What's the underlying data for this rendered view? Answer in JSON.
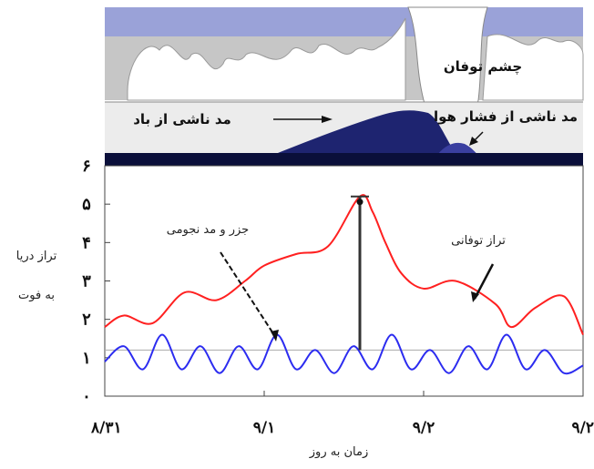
{
  "colors": {
    "storm_tide": "#ff2020",
    "astronomical_tide": "#2c2cf0",
    "sea_surge": "#1e2470",
    "sky_band": "#9aa2d8",
    "cloud_gray": "#bfbfbf",
    "ocean_floor": "#0a0f3a"
  },
  "schematic": {
    "eye_label": "چشم توفان",
    "wind_surge_label": "مد ناشی از باد",
    "pressure_surge_label": "مد ناشی از فشار هوا"
  },
  "chart_data": {
    "type": "line",
    "xlabel": "زمان به روز",
    "ylabel_line1": "تراز دریا",
    "ylabel_line2": "به فوت",
    "ylim": [
      0,
      6
    ],
    "yticks": [
      "۰",
      "۱",
      "۲",
      "۳",
      "۴",
      "۵",
      "۶"
    ],
    "xticks": [
      "۸/۳۱",
      "۹/۱",
      "۹/۲",
      "۹/۲"
    ],
    "xlim": [
      0,
      3
    ],
    "grid": false,
    "annotations": {
      "storm_tide_label": "تراز توفانی",
      "astronomical_label": "جزر و مد نجومی"
    },
    "series": [
      {
        "key": "storm_tide",
        "x": [
          0,
          0.12,
          0.3,
          0.5,
          0.7,
          0.88,
          1.0,
          1.2,
          1.4,
          1.6,
          1.68,
          1.76,
          1.86,
          2.0,
          2.2,
          2.45,
          2.55,
          2.7,
          2.88,
          3.0
        ],
        "values": [
          1.8,
          2.1,
          1.9,
          2.7,
          2.5,
          3.0,
          3.4,
          3.7,
          3.9,
          5.2,
          4.8,
          4.0,
          3.2,
          2.8,
          3.0,
          2.4,
          1.8,
          2.3,
          2.6,
          1.6
        ]
      },
      {
        "key": "astronomical_tide",
        "x": [
          0,
          0.12,
          0.24,
          0.36,
          0.48,
          0.6,
          0.72,
          0.84,
          0.96,
          1.08,
          1.2,
          1.32,
          1.44,
          1.56,
          1.68,
          1.8,
          1.92,
          2.04,
          2.16,
          2.28,
          2.4,
          2.52,
          2.64,
          2.76,
          2.88,
          3.0
        ],
        "values": [
          0.9,
          1.3,
          0.7,
          1.6,
          0.7,
          1.3,
          0.6,
          1.3,
          0.7,
          1.6,
          0.7,
          1.2,
          0.6,
          1.3,
          0.7,
          1.6,
          0.7,
          1.2,
          0.6,
          1.3,
          0.7,
          1.6,
          0.7,
          1.2,
          0.6,
          0.8
        ]
      }
    ],
    "reference_line_value": 1.2,
    "peak_marker_x": 1.6
  }
}
